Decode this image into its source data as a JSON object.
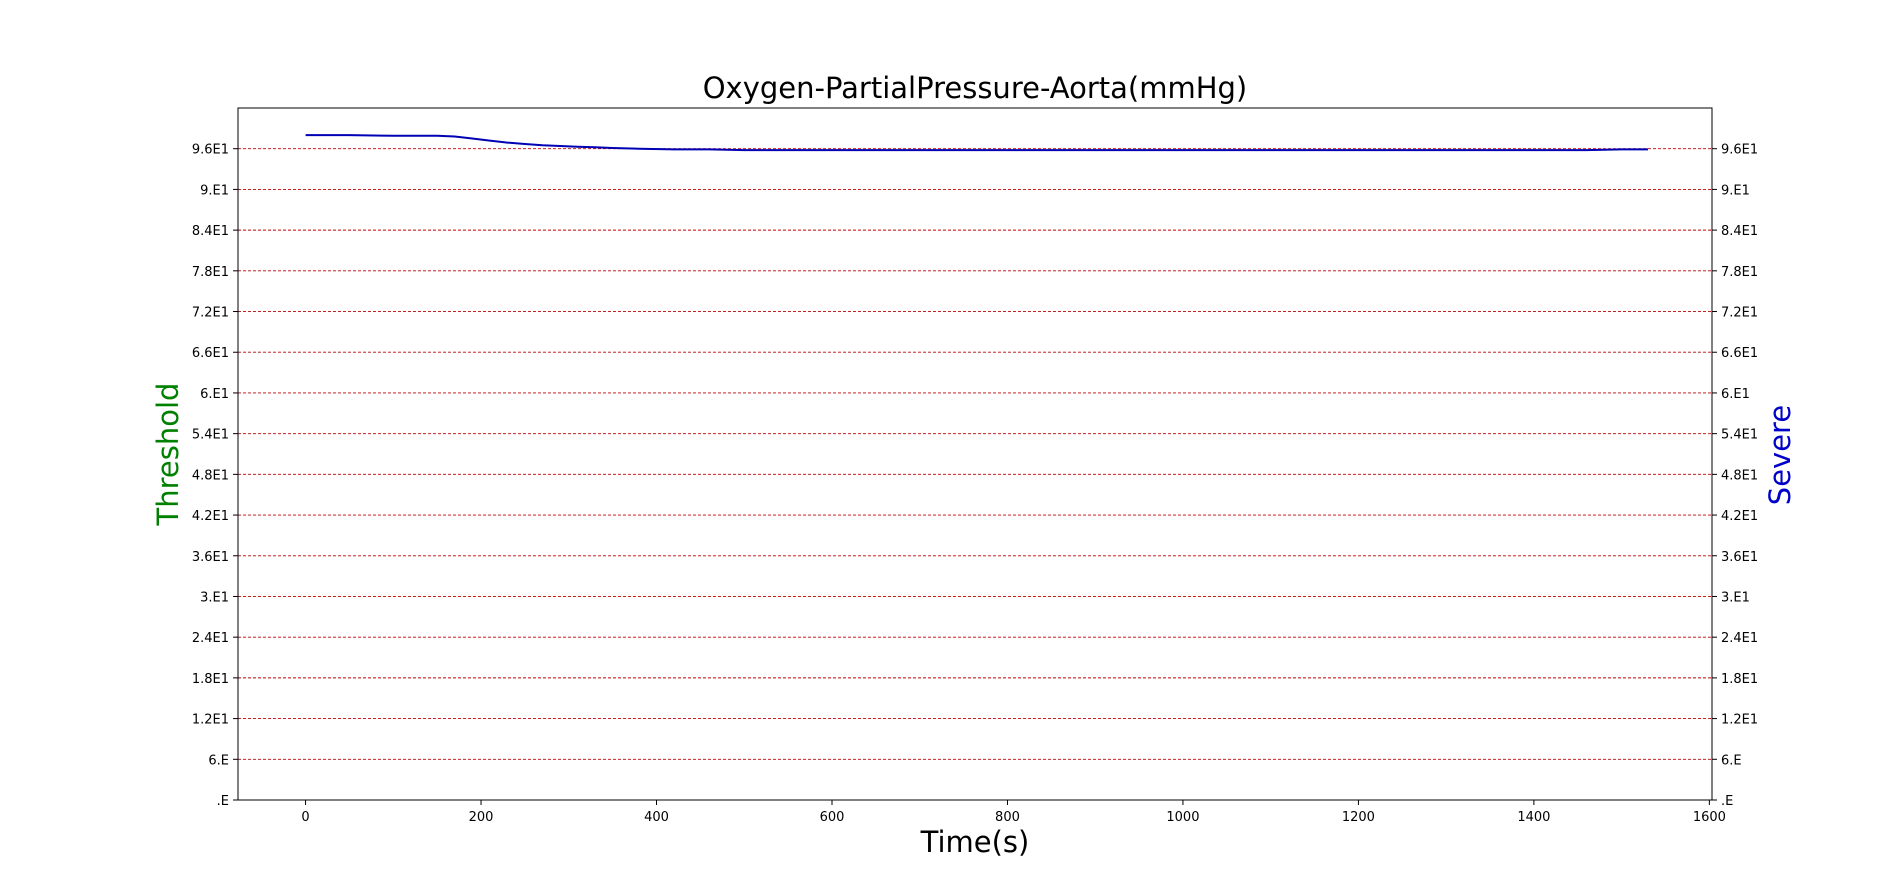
{
  "chart_data": {
    "type": "line",
    "title": "Oxygen-PartialPressure-Aorta(mmHg)",
    "xlabel": "Time(s)",
    "ylabel_left": "Threshold",
    "ylabel_right": "Severe",
    "xlim": [
      -77,
      1603
    ],
    "ylim": [
      0,
      102
    ],
    "x_ticks": [
      0,
      200,
      400,
      600,
      800,
      1000,
      1200,
      1400,
      1600
    ],
    "x_tick_labels": [
      "0",
      "200",
      "400",
      "600",
      "800",
      "1000",
      "1200",
      "1400",
      "1600"
    ],
    "y_ticks": [
      0,
      6,
      12,
      18,
      24,
      30,
      36,
      42,
      48,
      54,
      60,
      66,
      72,
      78,
      84,
      90,
      96
    ],
    "y_tick_labels": [
      ".E",
      "6.E",
      "1.2E1",
      "1.8E1",
      "2.4E1",
      "3.E1",
      "3.6E1",
      "4.2E1",
      "4.8E1",
      "5.4E1",
      "6.E1",
      "6.6E1",
      "7.2E1",
      "7.8E1",
      "8.4E1",
      "9.E1",
      "9.6E1"
    ],
    "grid": {
      "horizontal": true,
      "style": "dashed"
    },
    "colors": {
      "series": "#0000b4",
      "grid": "#c00000",
      "ylabel_left": "#008000",
      "ylabel_right": "#0000c8"
    },
    "series": [
      {
        "x": [
          0,
          50,
          100,
          150,
          170,
          190,
          210,
          230,
          250,
          270,
          290,
          310,
          330,
          350,
          380,
          420,
          460,
          500,
          550,
          600,
          650,
          700,
          760,
          800,
          900,
          1000,
          1050,
          1100,
          1200,
          1300,
          1400,
          1460,
          1500,
          1530
        ],
        "y": [
          98.0,
          98.0,
          97.9,
          97.9,
          97.8,
          97.5,
          97.2,
          96.9,
          96.7,
          96.5,
          96.4,
          96.3,
          96.2,
          96.1,
          96.0,
          95.9,
          95.9,
          95.8,
          95.8,
          95.8,
          95.8,
          95.8,
          95.8,
          95.8,
          95.8,
          95.8,
          95.8,
          95.8,
          95.8,
          95.8,
          95.8,
          95.8,
          95.9,
          95.9
        ]
      }
    ]
  }
}
